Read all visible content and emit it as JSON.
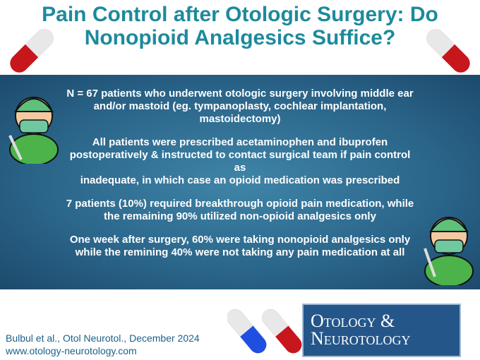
{
  "header": {
    "title_lines": [
      "Pain Control after Otologic Surgery: Do",
      "Nonopioid Analgesics Suffice?"
    ]
  },
  "body": {
    "paragraphs": [
      [
        "N = 67 patients who underwent otologic surgery involving middle ear",
        "and/or mastoid (eg. tympanoplasty, cochlear implantation, mastoidectomy)"
      ],
      [
        "All patients were prescribed acetaminophen and ibuprofen",
        "postoperatively & instructed to contact surgical team if pain control as",
        "inadequate, in which case an opioid medication was prescribed"
      ],
      [
        "7 patients (10%) required breakthrough opioid pain medication, while",
        "the remaining 90% utilized non-opioid analgesics only"
      ],
      [
        "One week after surgery, 60% were taking nonopioid analgesics only",
        "while the remining 40% were not taking any pain medication at all"
      ]
    ]
  },
  "footer": {
    "citation": "Bulbul et al., Otol Neurotol., December 2024",
    "url": "www.otology-neurotology.com",
    "journal_lines": [
      "Otology &",
      "Neurotology"
    ]
  }
}
